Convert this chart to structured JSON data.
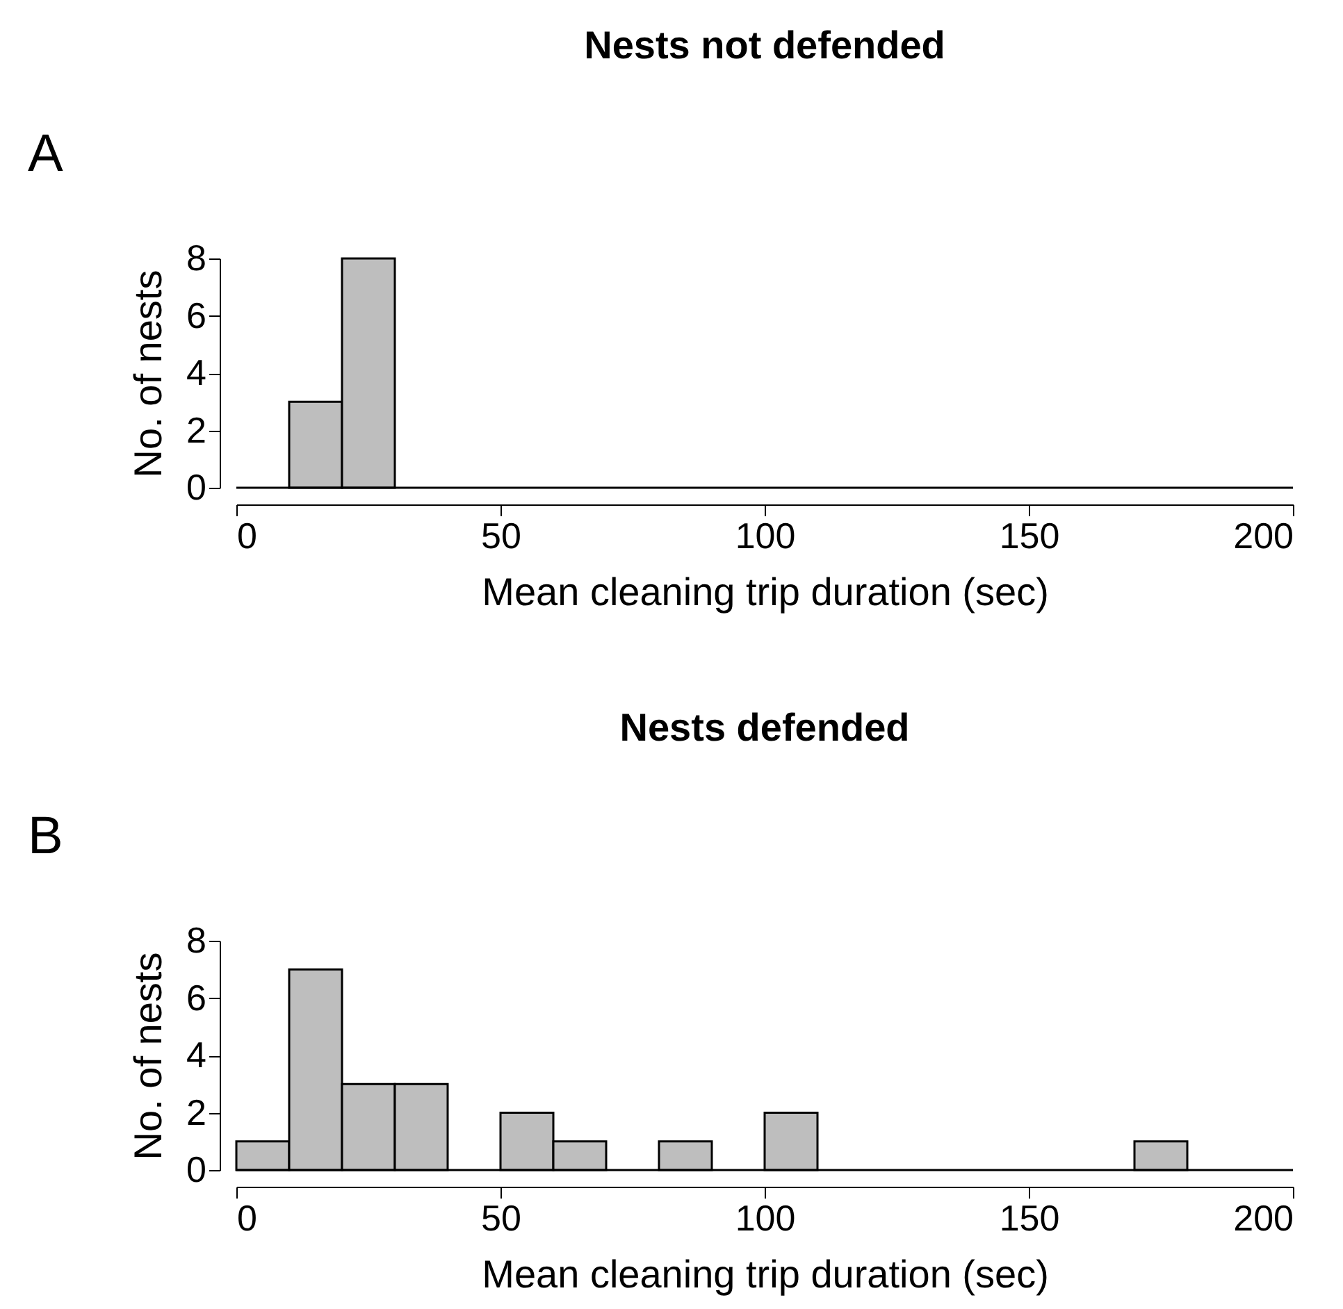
{
  "chart_data": [
    {
      "type": "histogram",
      "title": "Nests not defended",
      "xlabel": "Mean cleaning trip duration (sec)",
      "ylabel": "No. of nests",
      "annotations": [
        "A"
      ],
      "color": "#bebebe",
      "bins": [
        0,
        10,
        20,
        30,
        40,
        50,
        60,
        70,
        80,
        90,
        100,
        110,
        120,
        130,
        140,
        150,
        160,
        170,
        180,
        190,
        200
      ],
      "values": [
        0,
        3,
        8,
        0,
        0,
        0,
        0,
        0,
        0,
        0,
        0,
        0,
        0,
        0,
        0,
        0,
        0,
        0,
        0,
        0
      ],
      "xlim": [
        0,
        200
      ],
      "ylim": [
        0,
        8
      ],
      "xticks": [
        0,
        50,
        100,
        150,
        200
      ],
      "yticks": [
        0,
        2,
        4,
        6,
        8
      ]
    },
    {
      "type": "histogram",
      "title": "Nests defended",
      "xlabel": "Mean cleaning trip duration (sec)",
      "ylabel": "No. of nests",
      "annotations": [
        "B"
      ],
      "color": "#bebebe",
      "bins": [
        0,
        10,
        20,
        30,
        40,
        50,
        60,
        70,
        80,
        90,
        100,
        110,
        120,
        130,
        140,
        150,
        160,
        170,
        180,
        190,
        200
      ],
      "values": [
        1,
        7,
        3,
        3,
        0,
        2,
        1,
        0,
        1,
        0,
        2,
        0,
        0,
        0,
        0,
        0,
        0,
        1,
        0,
        0
      ],
      "xlim": [
        0,
        200
      ],
      "ylim": [
        0,
        8
      ],
      "xticks": [
        0,
        50,
        100,
        150,
        200
      ],
      "yticks": [
        0,
        2,
        4,
        6,
        8
      ]
    }
  ]
}
